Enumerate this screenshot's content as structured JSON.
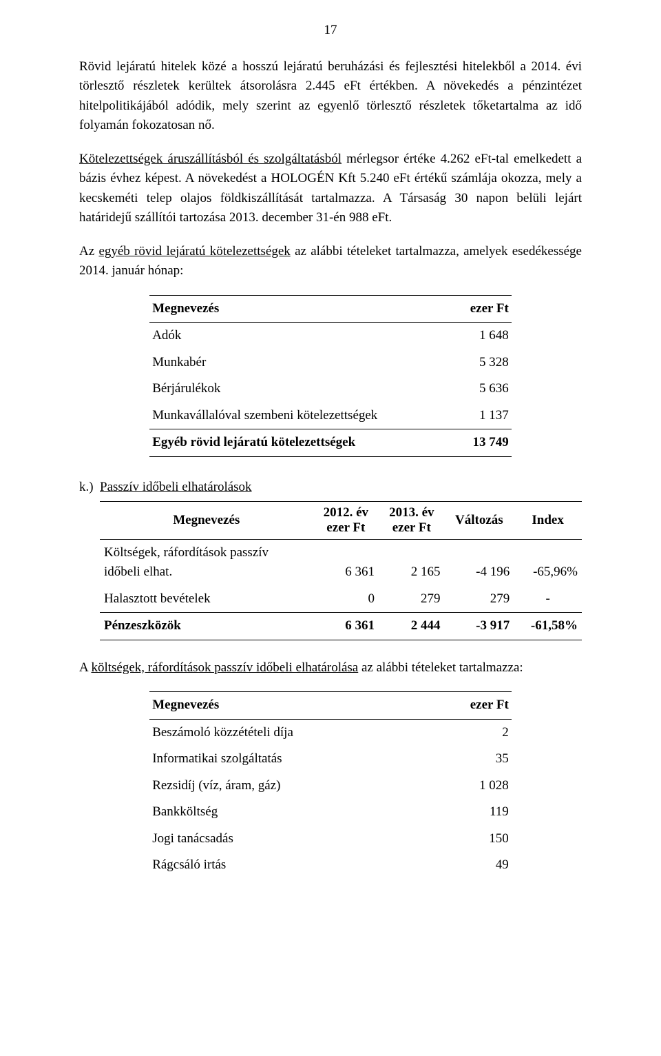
{
  "page_number": "17",
  "paragraphs": {
    "p1": {
      "text_a": "Rövid lejáratú hitelek közé a hosszú lejáratú beruházási és fejlesztési hitelekből a 2014. évi törlesztő részletek kerültek átsorolásra 2.445 eFt értékben. A növekedés a pénzintézet hitelpolitikájából adódik, mely szerint az egyenlő törlesztő részletek tőketartalma az idő folyamán fokozatosan nő."
    },
    "p2": {
      "underlined": "Kötelezettségek áruszállításból és szolgáltatásból",
      "rest": " mérlegsor értéke 4.262 eFt-tal emelkedett a bázis évhez képest. A növekedést a HOLOGÉN Kft 5.240 eFt értékű számlája okozza, mely a kecskeméti telep olajos földkiszállítását tartalmazza. A Társaság 30 napon belüli lejárt határidejű szállítói tartozása 2013. december 31-én 988 eFt."
    },
    "p3": {
      "pre": "Az ",
      "underlined": "egyéb rövid lejáratú kötelezettségek",
      "rest": " az alábbi tételeket tartalmazza, amelyek esedékessége 2014. január hónap:"
    },
    "p4": {
      "pre": "A ",
      "underlined": "költségek, ráfordítások passzív időbeli elhatárolása",
      "rest": " az alábbi tételeket tartalmazza:"
    }
  },
  "table1": {
    "col1_header": "Megnevezés",
    "col2_header": "ezer Ft",
    "rows": [
      {
        "label": "Adók",
        "value": "1 648"
      },
      {
        "label": "Munkabér",
        "value": "5 328"
      },
      {
        "label": "Bérjárulékok",
        "value": "5 636"
      },
      {
        "label": "Munkavállalóval szembeni kötelezettségek",
        "value": "1 137"
      }
    ],
    "total_label": "Egyéb rövid lejáratú kötelezettségek",
    "total_value": "13 749"
  },
  "section_k": {
    "marker": "k.)",
    "title": "Passzív időbeli elhatárolások"
  },
  "table2": {
    "col_label": "Megnevezés",
    "col_y1a": "2012. év",
    "col_y1b": "ezer Ft",
    "col_y2a": "2013. év",
    "col_y2b": "ezer Ft",
    "col_delta": "Változás",
    "col_index": "Index",
    "rows": [
      {
        "label_a": "Költségek, ráfordítások passzív",
        "label_b": "időbeli elhat.",
        "y1": "6 361",
        "y2": "2 165",
        "delta": "-4 196",
        "index": "-65,96%"
      },
      {
        "label": "Halasztott bevételek",
        "y1": "0",
        "y2": "279",
        "delta": "279",
        "index": "-"
      }
    ],
    "total": {
      "label": "Pénzeszközök",
      "y1": "6 361",
      "y2": "2 444",
      "delta": "-3 917",
      "index": "-61,58%"
    }
  },
  "table3": {
    "col1_header": "Megnevezés",
    "col2_header": "ezer Ft",
    "rows": [
      {
        "label": "Beszámoló közzétételi díja",
        "value": "2"
      },
      {
        "label": "Informatikai szolgáltatás",
        "value": "35"
      },
      {
        "label": "Rezsidíj (víz, áram, gáz)",
        "value": "1 028"
      },
      {
        "label": "Bankköltség",
        "value": "119"
      },
      {
        "label": "Jogi tanácsadás",
        "value": "150"
      },
      {
        "label": "Rágcsáló irtás",
        "value": "49"
      }
    ]
  }
}
